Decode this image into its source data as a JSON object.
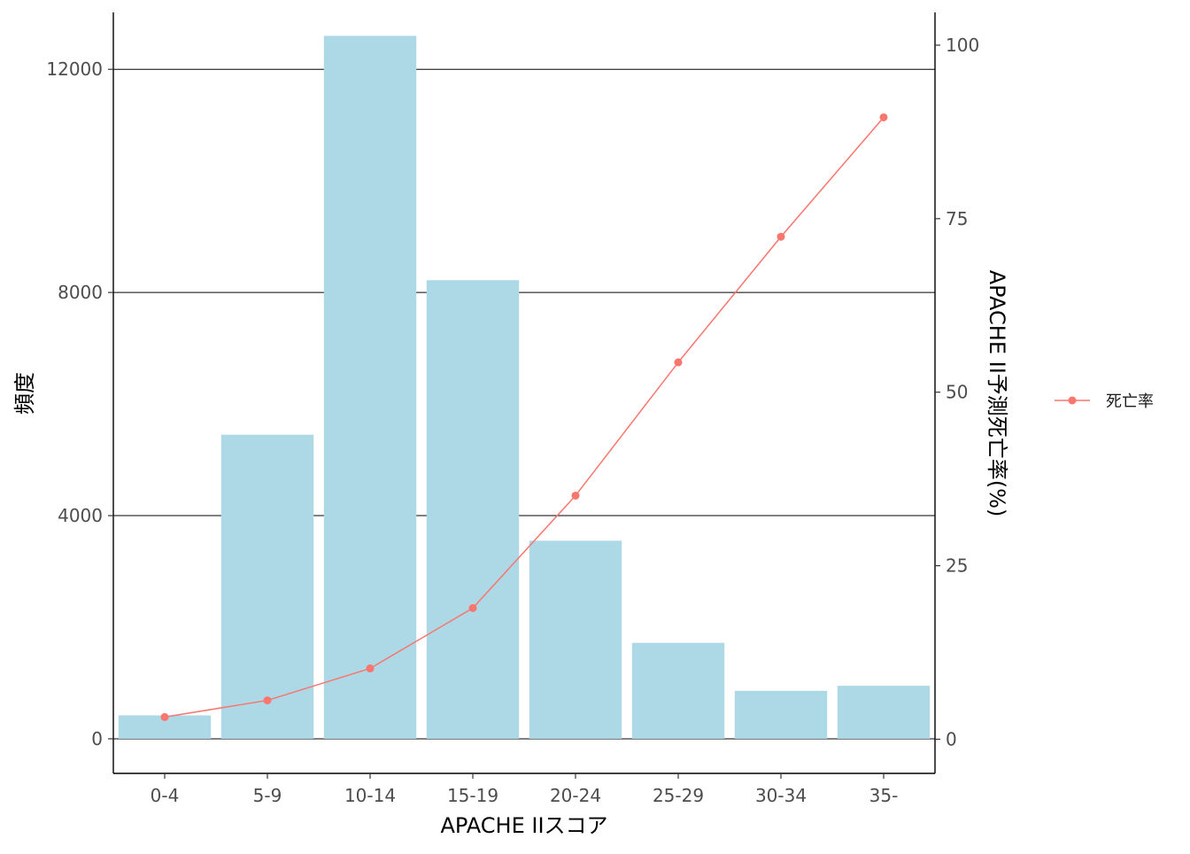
{
  "chart_data": {
    "type": "bar",
    "categories": [
      "0-4",
      "5-9",
      "10-14",
      "15-19",
      "20-24",
      "25-29",
      "30-34",
      "35-"
    ],
    "bar_series": {
      "values": [
        420,
        5450,
        12600,
        8220,
        3550,
        1720,
        860,
        950
      ],
      "color": "#ADD8E6"
    },
    "line_series": {
      "name": "死亡率",
      "values": [
        3.2,
        5.6,
        10.2,
        18.9,
        35.1,
        54.3,
        72.4,
        89.6
      ],
      "color": "#F8766D"
    },
    "xlabel": "APACHE IIスコア",
    "ylabel": "頻度",
    "y2label": "APACHE II予測死亡率(%)",
    "ylim": [
      -620,
      13020
    ],
    "y2lim": [
      -4.92,
      104.72
    ],
    "yticks": [
      0,
      4000,
      8000,
      12000
    ],
    "y2ticks": [
      0,
      25,
      50,
      75,
      100
    ],
    "grid": "horizontal major lines at left-axis ticks",
    "legend_position": "right"
  }
}
